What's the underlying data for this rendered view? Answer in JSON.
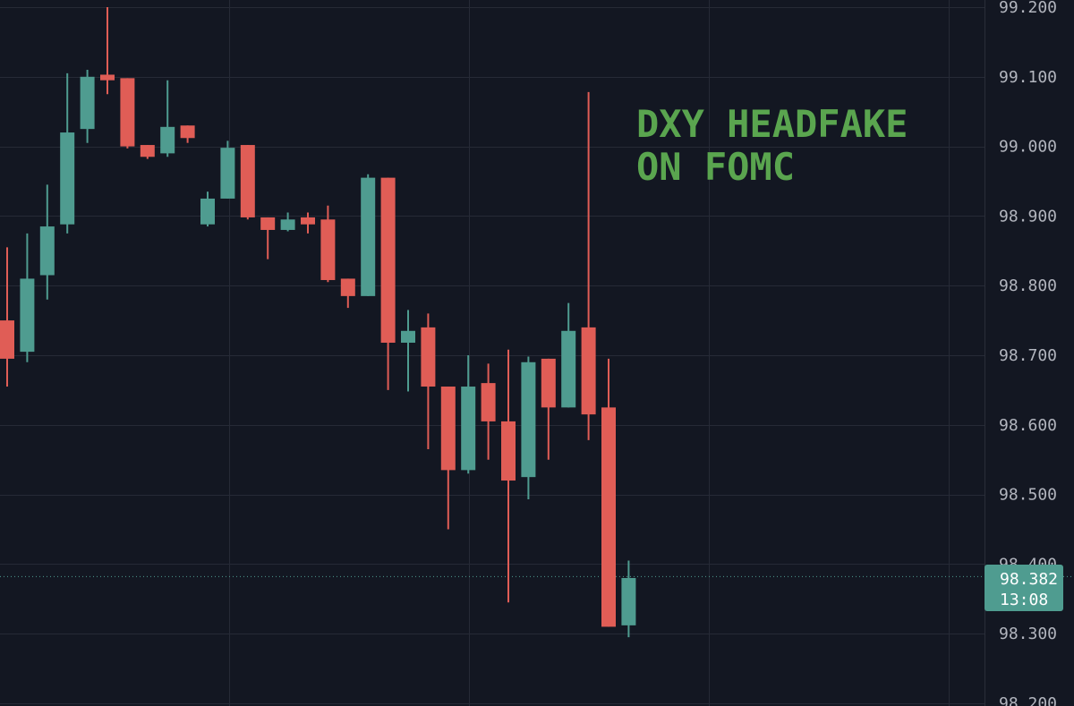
{
  "chart_data": {
    "type": "candlestick",
    "title": "",
    "xlabel": "",
    "ylabel": "",
    "ylim": [
      98.2,
      99.2
    ],
    "y_ticks": [
      "99.200",
      "99.100",
      "99.000",
      "98.900",
      "98.800",
      "98.700",
      "98.600",
      "98.500",
      "98.400",
      "98.300",
      "98.200"
    ],
    "grid": true,
    "annotation": {
      "lines": [
        "DXY HEADFAKE",
        "ON FOMC"
      ],
      "color": "#5aa54f"
    },
    "current_price": {
      "value": 98.382,
      "label": "98.382",
      "countdown": "13:08",
      "color": "#4f9c90"
    },
    "colors": {
      "up": "#4f9c90",
      "down": "#e05d56",
      "background": "#131722",
      "grid": "#262a36"
    },
    "candles": [
      {
        "o": 98.75,
        "h": 98.855,
        "l": 98.655,
        "c": 98.695
      },
      {
        "o": 98.705,
        "h": 98.875,
        "l": 98.69,
        "c": 98.81
      },
      {
        "o": 98.815,
        "h": 98.945,
        "l": 98.78,
        "c": 98.885
      },
      {
        "o": 98.888,
        "h": 99.105,
        "l": 98.875,
        "c": 99.02
      },
      {
        "o": 99.025,
        "h": 99.11,
        "l": 99.005,
        "c": 99.1
      },
      {
        "o": 99.103,
        "h": 99.2,
        "l": 99.075,
        "c": 99.095
      },
      {
        "o": 99.098,
        "h": 99.098,
        "l": 98.997,
        "c": 99.0
      },
      {
        "o": 99.002,
        "h": 99.002,
        "l": 98.982,
        "c": 98.985
      },
      {
        "o": 98.99,
        "h": 99.095,
        "l": 98.985,
        "c": 99.028
      },
      {
        "o": 99.03,
        "h": 99.03,
        "l": 99.005,
        "c": 99.012
      },
      {
        "o": 98.888,
        "h": 98.935,
        "l": 98.885,
        "c": 98.925
      },
      {
        "o": 98.925,
        "h": 99.008,
        "l": 98.925,
        "c": 98.998
      },
      {
        "o": 99.002,
        "h": 99.002,
        "l": 98.895,
        "c": 98.898
      },
      {
        "o": 98.898,
        "h": 98.898,
        "l": 98.838,
        "c": 98.88
      },
      {
        "o": 98.88,
        "h": 98.905,
        "l": 98.878,
        "c": 98.895
      },
      {
        "o": 98.898,
        "h": 98.905,
        "l": 98.875,
        "c": 98.888
      },
      {
        "o": 98.895,
        "h": 98.915,
        "l": 98.805,
        "c": 98.808
      },
      {
        "o": 98.81,
        "h": 98.81,
        "l": 98.768,
        "c": 98.785
      },
      {
        "o": 98.785,
        "h": 98.96,
        "l": 98.785,
        "c": 98.955
      },
      {
        "o": 98.955,
        "h": 98.955,
        "l": 98.65,
        "c": 98.718
      },
      {
        "o": 98.718,
        "h": 98.765,
        "l": 98.648,
        "c": 98.735
      },
      {
        "o": 98.74,
        "h": 98.76,
        "l": 98.565,
        "c": 98.655
      },
      {
        "o": 98.655,
        "h": 98.655,
        "l": 98.45,
        "c": 98.535
      },
      {
        "o": 98.535,
        "h": 98.7,
        "l": 98.53,
        "c": 98.655
      },
      {
        "o": 98.66,
        "h": 98.688,
        "l": 98.55,
        "c": 98.605
      },
      {
        "o": 98.605,
        "h": 98.708,
        "l": 98.345,
        "c": 98.52
      },
      {
        "o": 98.525,
        "h": 98.698,
        "l": 98.493,
        "c": 98.69
      },
      {
        "o": 98.695,
        "h": 98.695,
        "l": 98.55,
        "c": 98.625
      },
      {
        "o": 98.625,
        "h": 98.775,
        "l": 98.625,
        "c": 98.735
      },
      {
        "o": 98.74,
        "h": 99.078,
        "l": 98.578,
        "c": 98.615
      },
      {
        "o": 98.625,
        "h": 98.695,
        "l": 98.31,
        "c": 98.31
      },
      {
        "o": 98.312,
        "h": 98.405,
        "l": 98.295,
        "c": 98.38
      }
    ]
  }
}
